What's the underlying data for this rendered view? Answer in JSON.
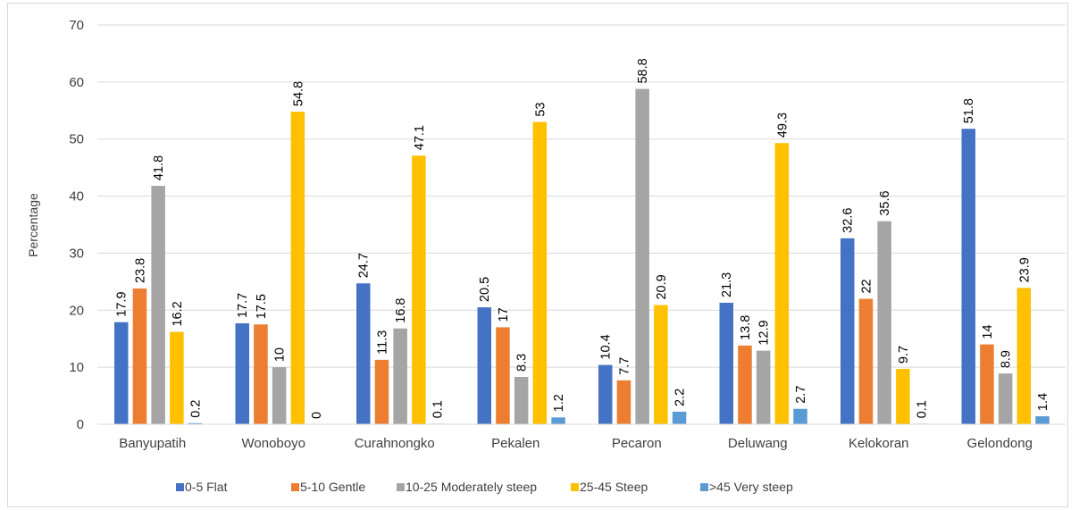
{
  "chart_data": {
    "type": "bar",
    "title": "",
    "xlabel": "",
    "ylabel": "Percentage",
    "ylim": [
      0,
      70
    ],
    "yticks": [
      0,
      10,
      20,
      30,
      40,
      50,
      60,
      70
    ],
    "grid": true,
    "legend_position": "bottom",
    "categories": [
      "Banyupatih",
      "Wonoboyo",
      "Curahnongko",
      "Pekalen",
      "Pecaron",
      "Deluwang",
      "Kelokoran",
      "Gelondong"
    ],
    "series": [
      {
        "name": "0-5 Flat",
        "color": "#4472c4",
        "values": [
          17.9,
          17.7,
          24.7,
          20.5,
          10.4,
          21.3,
          32.6,
          51.8
        ]
      },
      {
        "name": "5-10 Gentle",
        "color": "#ed7d31",
        "values": [
          23.8,
          17.5,
          11.3,
          17,
          7.7,
          13.8,
          22,
          14
        ]
      },
      {
        "name": "10-25 Moderately steep",
        "color": "#a5a5a5",
        "values": [
          41.8,
          10,
          16.8,
          8.3,
          58.8,
          12.9,
          35.6,
          8.9
        ]
      },
      {
        "name": "25-45 Steep",
        "color": "#ffc000",
        "values": [
          16.2,
          54.8,
          47.1,
          53,
          20.9,
          49.3,
          9.7,
          23.9
        ]
      },
      {
        "name": ">45 Very steep",
        "color": "#5b9bd5",
        "values": [
          0.2,
          0,
          0.1,
          1.2,
          2.2,
          2.7,
          0.1,
          1.4
        ]
      }
    ]
  }
}
